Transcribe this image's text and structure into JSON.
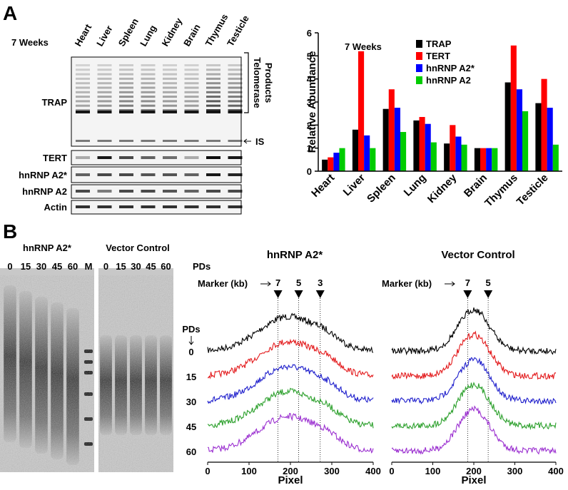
{
  "panel_a": {
    "label": "A",
    "age": "7 Weeks",
    "lanes": [
      "Heart",
      "Liver",
      "Spleen",
      "Lung",
      "Kidney",
      "Brain",
      "Thymus",
      "Testicle"
    ],
    "rows": [
      "TRAP",
      "TERT",
      "hnRNP A2*",
      "hnRNP A2",
      "Actin"
    ],
    "bracket_label": [
      "Telomerase",
      "Products"
    ],
    "is_label": "IS",
    "chart": {
      "type": "bar",
      "title": "7 Weeks",
      "y_label": "Relative Abundance",
      "categories": [
        "Heart",
        "Liver",
        "Spleen",
        "Lung",
        "Kidney",
        "Brain",
        "Thymus",
        "Testicle"
      ],
      "series": [
        {
          "name": "TRAP",
          "color": "#000000",
          "values": [
            0.5,
            1.8,
            2.7,
            2.2,
            1.2,
            1.0,
            3.85,
            2.95
          ]
        },
        {
          "name": "TERT",
          "color": "#ff0000",
          "values": [
            0.6,
            5.2,
            3.55,
            2.35,
            2.0,
            1.0,
            5.45,
            4.0
          ]
        },
        {
          "name": "hnRNP A2*",
          "color": "#0000ff",
          "values": [
            0.8,
            1.55,
            2.75,
            2.05,
            1.5,
            1.0,
            3.55,
            2.75
          ]
        },
        {
          "name": "hnRNP A2",
          "color": "#00cc00",
          "values": [
            1.0,
            1.0,
            1.7,
            1.25,
            1.15,
            1.0,
            2.6,
            1.15
          ]
        }
      ],
      "ylim": [
        0,
        6
      ],
      "yticks": [
        0,
        1,
        2,
        3,
        4,
        5,
        6
      ]
    }
  },
  "panel_b": {
    "label": "B",
    "gels": [
      {
        "title": "hnRNP A2*",
        "lanes": [
          "0",
          "15",
          "30",
          "45",
          "60",
          "M"
        ]
      },
      {
        "title": "Vector Control",
        "lanes": [
          "0",
          "15",
          "30",
          "45",
          "60"
        ]
      }
    ],
    "pds_label": "PDs",
    "plots": [
      {
        "title": "hnRNP A2*",
        "marker_label": "Marker (kb)",
        "markers": [
          "7",
          "5",
          "3"
        ]
      },
      {
        "title": "Vector Control",
        "marker_label": "Marker (kb)",
        "markers": [
          "7",
          "5"
        ]
      }
    ],
    "trace_axis_label": "PDs",
    "traces": [
      {
        "name": "0",
        "color": "#000000"
      },
      {
        "name": "15",
        "color": "#e31a1c"
      },
      {
        "name": "30",
        "color": "#1f1fcc"
      },
      {
        "name": "45",
        "color": "#2ca02c"
      },
      {
        "name": "60",
        "color": "#9b30d0"
      }
    ],
    "x_label": "Pixel",
    "xlim": [
      0,
      400
    ],
    "xticks": [
      0,
      100,
      200,
      300,
      400
    ]
  }
}
